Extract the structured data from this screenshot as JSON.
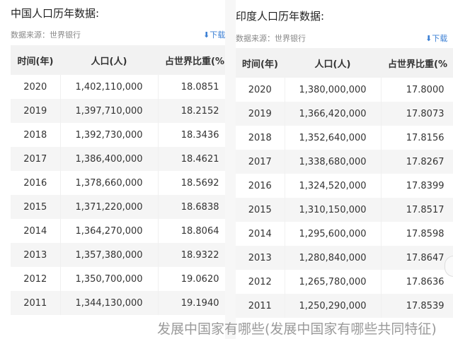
{
  "china": {
    "title": "中国人口历年数据:",
    "source": "数据来源：世界银行",
    "download": "下载",
    "headers": [
      "时间(年)",
      "人口(人)",
      "占世界比重(%"
    ],
    "rows": [
      [
        "2020",
        "1,402,110,000",
        "18.0851"
      ],
      [
        "2019",
        "1,397,710,000",
        "18.2152"
      ],
      [
        "2018",
        "1,392,730,000",
        "18.3436"
      ],
      [
        "2017",
        "1,386,400,000",
        "18.4621"
      ],
      [
        "2016",
        "1,378,660,000",
        "18.5692"
      ],
      [
        "2015",
        "1,371,220,000",
        "18.6838"
      ],
      [
        "2014",
        "1,364,270,000",
        "18.8064"
      ],
      [
        "2013",
        "1,357,380,000",
        "18.9322"
      ],
      [
        "2012",
        "1,350,700,000",
        "19.0620"
      ],
      [
        "2011",
        "1,344,130,000",
        "19.1940"
      ]
    ]
  },
  "india": {
    "title": "印度人口历年数据:",
    "source": "数据来源：世界银行",
    "download": "下载",
    "headers": [
      "时间(年)",
      "人口(人)",
      "占世界比重(%"
    ],
    "rows": [
      [
        "2020",
        "1,380,000,000",
        "17.8000"
      ],
      [
        "2019",
        "1,366,420,000",
        "17.8073"
      ],
      [
        "2018",
        "1,352,640,000",
        "17.8156"
      ],
      [
        "2017",
        "1,338,680,000",
        "17.8267"
      ],
      [
        "2016",
        "1,324,520,000",
        "17.8399"
      ],
      [
        "2015",
        "1,310,150,000",
        "17.8517"
      ],
      [
        "2014",
        "1,295,600,000",
        "17.8598"
      ],
      [
        "2013",
        "1,280,840,000",
        "17.8647"
      ],
      [
        "2012",
        "1,265,780,000",
        "17.8636"
      ],
      [
        "2011",
        "1,250,290,000",
        "17.8539"
      ]
    ]
  },
  "watermark": "发展中国家有哪些(发展中国家有哪些共同特征)",
  "colors": {
    "link": "#3b7fd4",
    "header_bg": "#f2f2f2"
  }
}
